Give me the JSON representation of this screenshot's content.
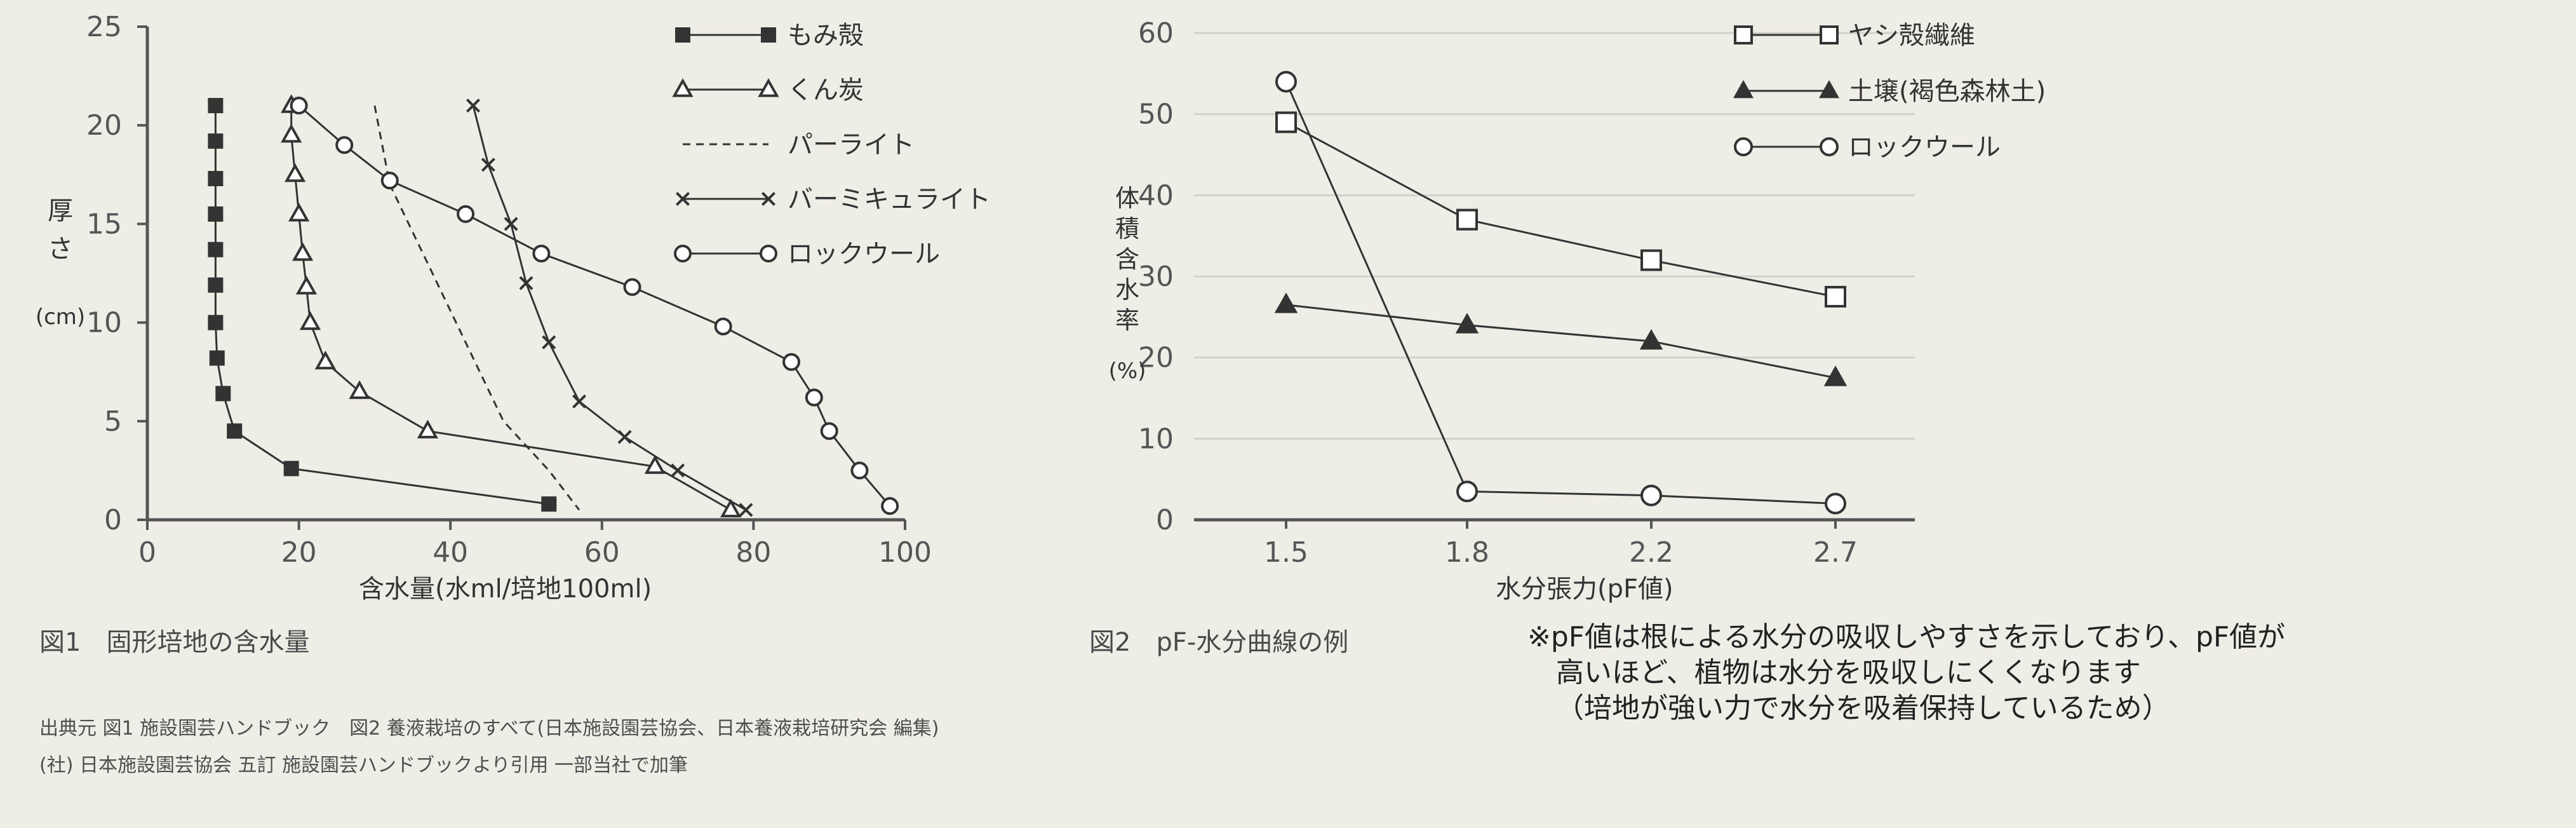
{
  "chart_data": [
    {
      "type": "line",
      "xlabel": "含水量(水ml/培地100ml)",
      "ylabel": "厚さ(cm)",
      "xlim": [
        0,
        100
      ],
      "ylim": [
        0,
        25
      ],
      "xticks": [
        "0",
        "20",
        "40",
        "60",
        "80",
        "100"
      ],
      "yticks": [
        "0",
        "5",
        "10",
        "15",
        "20",
        "25"
      ],
      "legend_position": "top-right",
      "series": [
        {
          "name": "もみ殻",
          "style": "solid",
          "marker": "filled-square",
          "points": [
            [
              9,
              21
            ],
            [
              9,
              19.2
            ],
            [
              9,
              17.3
            ],
            [
              9,
              15.5
            ],
            [
              9,
              13.7
            ],
            [
              9,
              11.9
            ],
            [
              9,
              10
            ],
            [
              9.2,
              8.2
            ],
            [
              10,
              6.4
            ],
            [
              11.5,
              4.5
            ],
            [
              19,
              2.6
            ],
            [
              53,
              0.8
            ]
          ]
        },
        {
          "name": "くん炭",
          "style": "solid",
          "marker": "open-triangle",
          "points": [
            [
              19,
              21
            ],
            [
              19,
              19.5
            ],
            [
              19.5,
              17.5
            ],
            [
              20,
              15.5
            ],
            [
              20.5,
              13.5
            ],
            [
              21,
              11.8
            ],
            [
              21.5,
              10
            ],
            [
              23.5,
              8
            ],
            [
              28,
              6.5
            ],
            [
              37,
              4.5
            ],
            [
              67,
              2.7
            ],
            [
              77,
              0.5
            ]
          ]
        },
        {
          "name": "パーライト",
          "style": "dashed",
          "marker": "none",
          "points": [
            [
              30,
              21
            ],
            [
              32,
              17
            ],
            [
              37,
              13
            ],
            [
              42,
              9
            ],
            [
              47,
              5
            ],
            [
              53,
              2.5
            ],
            [
              57,
              0.5
            ]
          ]
        },
        {
          "name": "バーミキュライト",
          "style": "solid",
          "marker": "cross",
          "points": [
            [
              43,
              21
            ],
            [
              45,
              18
            ],
            [
              48,
              15
            ],
            [
              50,
              12
            ],
            [
              53,
              9
            ],
            [
              57,
              6
            ],
            [
              63,
              4.2
            ],
            [
              70,
              2.5
            ],
            [
              79,
              0.5
            ]
          ]
        },
        {
          "name": "ロックウール",
          "style": "solid",
          "marker": "open-circle",
          "points": [
            [
              20,
              21
            ],
            [
              26,
              19
            ],
            [
              32,
              17.2
            ],
            [
              42,
              15.5
            ],
            [
              52,
              13.5
            ],
            [
              64,
              11.8
            ],
            [
              76,
              9.8
            ],
            [
              85,
              8
            ],
            [
              88,
              6.2
            ],
            [
              90,
              4.5
            ],
            [
              94,
              2.5
            ],
            [
              98,
              0.7
            ]
          ]
        }
      ]
    },
    {
      "type": "line",
      "xlabel": "水分張力(pF値)",
      "ylabel": "体積含水率(%)",
      "categories": [
        "1.5",
        "1.8",
        "2.2",
        "2.7"
      ],
      "ylim": [
        0,
        60
      ],
      "yticks": [
        "0",
        "10",
        "20",
        "30",
        "40",
        "50",
        "60"
      ],
      "gridlines": true,
      "legend_position": "top-right",
      "series": [
        {
          "name": "ヤシ殻繊維",
          "marker": "open-square",
          "values": [
            49,
            37,
            32,
            27.5
          ]
        },
        {
          "name": "土壌(褐色森林土)",
          "marker": "filled-triangle",
          "values": [
            26.5,
            24,
            22,
            17.5
          ]
        },
        {
          "name": "ロックウール",
          "marker": "open-circle",
          "values": [
            54,
            3.5,
            3,
            2
          ]
        }
      ]
    }
  ],
  "captions": {
    "fig1": "図1　固形培地の含水量",
    "fig2": "図2　pF-水分曲線の例",
    "note": [
      "※pF値は根による水分の吸収しやすさを示しており、pF値が",
      "高いほど、植物は水分を吸収しにくくなります",
      "（培地が強い力で水分を吸着保持しているため）"
    ],
    "source": [
      "出典元 図1 施設園芸ハンドブック　図2 養液栽培のすべて(日本施設園芸協会、日本養液栽培研究会 編集)",
      "(社) 日本施設園芸協会 五訂 施設園芸ハンドブックより引用 一部当社で加筆"
    ]
  },
  "colors": {
    "background": "#eeede6",
    "ink": "#333333",
    "axis": "#555555",
    "grid": "#d2d2cc"
  }
}
